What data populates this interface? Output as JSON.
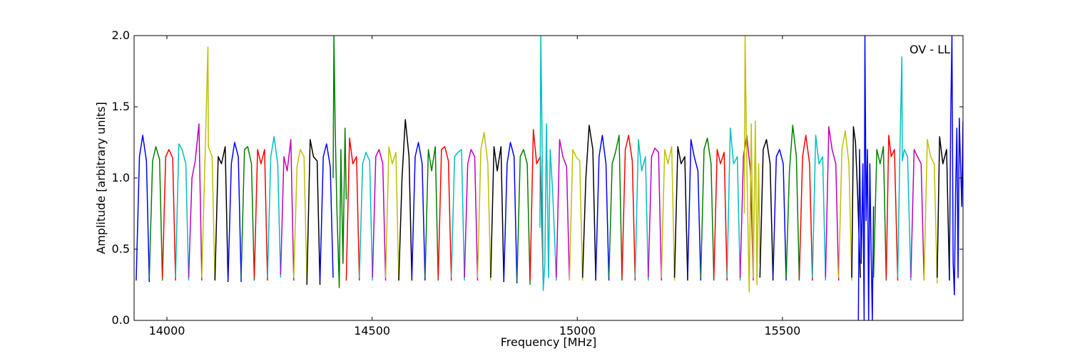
{
  "chart_data": {
    "type": "line",
    "xlabel": "Frequency [MHz]",
    "ylabel": "Amplitude [arbitrary units]",
    "annotation": "OV - LL",
    "xlim": [
      13920,
      15940
    ],
    "ylim": [
      0.0,
      2.0
    ],
    "x_ticks": [
      14000,
      14500,
      15000,
      15500
    ],
    "y_ticks": [
      0.0,
      0.5,
      1.0,
      1.5,
      2.0
    ],
    "y_tick_labels": [
      "0.0",
      "0.5",
      "1.0",
      "1.5",
      "2.0"
    ],
    "grid": false,
    "legend": "none",
    "colors": [
      "#0000ff",
      "#008000",
      "#ff0000",
      "#00bfbf",
      "#bf00bf",
      "#bfbf00",
      "#000000"
    ],
    "band_width_mhz": 32,
    "band_start_mhz": 13925,
    "series": [
      {
        "color": "#0000ff",
        "x": [
          13925,
          13933,
          13941,
          13950,
          13957
        ],
        "y": [
          0.28,
          1.15,
          1.3,
          1.12,
          0.27
        ]
      },
      {
        "color": "#008000",
        "x": [
          13957,
          13965,
          13973,
          13982,
          13989
        ],
        "y": [
          0.3,
          1.12,
          1.22,
          1.13,
          0.28
        ]
      },
      {
        "color": "#ff0000",
        "x": [
          13989,
          13997,
          14005,
          14014,
          14021
        ],
        "y": [
          0.3,
          1.15,
          1.2,
          1.14,
          0.28
        ]
      },
      {
        "color": "#00bfbf",
        "x": [
          14021,
          14029,
          14037,
          14046,
          14053
        ],
        "y": [
          0.3,
          1.24,
          1.2,
          1.1,
          0.28
        ]
      },
      {
        "color": "#bf00bf",
        "x": [
          14053,
          14061,
          14069,
          14078,
          14085
        ],
        "y": [
          0.3,
          1.0,
          1.12,
          1.38,
          0.28
        ]
      },
      {
        "color": "#bfbf00",
        "x": [
          14085,
          14093,
          14100,
          14101,
          14110,
          14117
        ],
        "y": [
          0.3,
          1.15,
          1.92,
          1.22,
          1.15,
          0.28
        ]
      },
      {
        "color": "#000000",
        "x": [
          14117,
          14125,
          14133,
          14142,
          14149
        ],
        "y": [
          0.28,
          1.15,
          1.1,
          1.22,
          0.27
        ]
      },
      {
        "color": "#0000ff",
        "x": [
          14149,
          14157,
          14165,
          14174,
          14181
        ],
        "y": [
          0.28,
          1.1,
          1.25,
          1.15,
          0.27
        ]
      },
      {
        "color": "#008000",
        "x": [
          14181,
          14189,
          14197,
          14206,
          14213
        ],
        "y": [
          0.3,
          1.2,
          1.22,
          1.1,
          0.28
        ]
      },
      {
        "color": "#ff0000",
        "x": [
          14213,
          14221,
          14229,
          14238,
          14245
        ],
        "y": [
          0.3,
          1.2,
          1.1,
          1.2,
          0.28
        ]
      },
      {
        "color": "#00bfbf",
        "x": [
          14245,
          14253,
          14261,
          14270,
          14277
        ],
        "y": [
          0.3,
          1.15,
          1.29,
          1.1,
          0.3
        ]
      },
      {
        "color": "#bf00bf",
        "x": [
          14277,
          14285,
          14293,
          14302,
          14309
        ],
        "y": [
          0.32,
          1.15,
          1.05,
          1.27,
          0.28
        ]
      },
      {
        "color": "#bfbf00",
        "x": [
          14309,
          14317,
          14325,
          14334,
          14341
        ],
        "y": [
          0.3,
          1.08,
          1.2,
          1.15,
          0.28
        ]
      },
      {
        "color": "#000000",
        "x": [
          14341,
          14349,
          14357,
          14366,
          14373
        ],
        "y": [
          0.25,
          1.27,
          1.15,
          1.12,
          0.25
        ]
      },
      {
        "color": "#0000ff",
        "x": [
          14373,
          14381,
          14389,
          14398,
          14405
        ],
        "y": [
          0.28,
          1.15,
          1.24,
          1.08,
          0.3
        ]
      },
      {
        "color": "#008000",
        "x": [
          14405,
          14407,
          14410,
          14414,
          14420,
          14424,
          14429,
          14434,
          14437
        ],
        "y": [
          1.0,
          2.0,
          1.35,
          0.8,
          0.23,
          1.2,
          0.4,
          1.35,
          0.85
        ]
      },
      {
        "color": "#ff0000",
        "x": [
          14437,
          14445,
          14453,
          14462,
          14469
        ],
        "y": [
          0.28,
          1.28,
          1.1,
          1.15,
          0.28
        ]
      },
      {
        "color": "#00bfbf",
        "x": [
          14469,
          14477,
          14485,
          14494,
          14501
        ],
        "y": [
          0.3,
          1.1,
          1.18,
          1.12,
          0.28
        ]
      },
      {
        "color": "#bf00bf",
        "x": [
          14501,
          14509,
          14517,
          14526,
          14533
        ],
        "y": [
          0.3,
          1.15,
          1.2,
          1.1,
          0.28
        ]
      },
      {
        "color": "#bfbf00",
        "x": [
          14533,
          14541,
          14549,
          14558,
          14565
        ],
        "y": [
          0.3,
          1.22,
          1.1,
          1.18,
          0.28
        ]
      },
      {
        "color": "#000000",
        "x": [
          14565,
          14573,
          14581,
          14590,
          14597
        ],
        "y": [
          0.28,
          1.0,
          1.41,
          1.15,
          0.28
        ]
      },
      {
        "color": "#0000ff",
        "x": [
          14597,
          14605,
          14613,
          14622,
          14629
        ],
        "y": [
          0.3,
          1.15,
          1.25,
          1.1,
          0.28
        ]
      },
      {
        "color": "#008000",
        "x": [
          14629,
          14637,
          14645,
          14654,
          14661
        ],
        "y": [
          0.3,
          1.2,
          1.05,
          1.22,
          0.28
        ]
      },
      {
        "color": "#ff0000",
        "x": [
          14661,
          14669,
          14677,
          14686,
          14693
        ],
        "y": [
          0.3,
          1.2,
          1.22,
          1.12,
          0.28
        ]
      },
      {
        "color": "#00bfbf",
        "x": [
          14693,
          14701,
          14709,
          14718,
          14725
        ],
        "y": [
          0.3,
          1.15,
          1.18,
          1.2,
          0.28
        ]
      },
      {
        "color": "#bf00bf",
        "x": [
          14725,
          14733,
          14741,
          14750,
          14757
        ],
        "y": [
          0.3,
          1.1,
          1.2,
          1.15,
          0.28
        ]
      },
      {
        "color": "#bfbf00",
        "x": [
          14757,
          14765,
          14773,
          14782,
          14789
        ],
        "y": [
          0.3,
          1.2,
          1.32,
          1.1,
          0.28
        ]
      },
      {
        "color": "#000000",
        "x": [
          14789,
          14797,
          14805,
          14814,
          14821
        ],
        "y": [
          0.3,
          1.22,
          1.05,
          1.22,
          0.27
        ]
      },
      {
        "color": "#0000ff",
        "x": [
          14821,
          14829,
          14837,
          14846,
          14853
        ],
        "y": [
          0.28,
          1.1,
          1.25,
          1.15,
          0.26
        ]
      },
      {
        "color": "#008000",
        "x": [
          14853,
          14861,
          14869,
          14878,
          14885
        ],
        "y": [
          0.27,
          1.15,
          1.2,
          1.1,
          0.25
        ]
      },
      {
        "color": "#ff0000",
        "x": [
          14885,
          14893,
          14901,
          14910,
          14917
        ],
        "y": [
          0.28,
          1.34,
          1.1,
          1.15,
          0.28
        ]
      },
      {
        "color": "#00bfbf",
        "x": [
          14909,
          14911,
          14914,
          14917,
          14921,
          14925,
          14930,
          14934,
          14940,
          14949
        ],
        "y": [
          0.65,
          2.0,
          1.35,
          0.21,
          0.4,
          1.38,
          0.3,
          1.2,
          0.9,
          0.28
        ]
      },
      {
        "color": "#bf00bf",
        "x": [
          14949,
          14957,
          14965,
          14974,
          14981
        ],
        "y": [
          0.3,
          1.27,
          1.15,
          1.08,
          0.28
        ]
      },
      {
        "color": "#bfbf00",
        "x": [
          14981,
          14989,
          14997,
          15006,
          15013
        ],
        "y": [
          0.28,
          1.2,
          1.15,
          1.12,
          0.28
        ]
      },
      {
        "color": "#000000",
        "x": [
          15013,
          15021,
          15029,
          15038,
          15045
        ],
        "y": [
          0.3,
          1.0,
          1.37,
          1.2,
          0.28
        ]
      },
      {
        "color": "#0000ff",
        "x": [
          15045,
          15053,
          15061,
          15070,
          15077
        ],
        "y": [
          0.3,
          1.15,
          1.3,
          1.1,
          0.28
        ]
      },
      {
        "color": "#008000",
        "x": [
          15077,
          15085,
          15093,
          15102,
          15109
        ],
        "y": [
          0.3,
          1.1,
          1.18,
          1.3,
          0.28
        ]
      },
      {
        "color": "#ff0000",
        "x": [
          15109,
          15117,
          15125,
          15134,
          15141
        ],
        "y": [
          0.3,
          1.2,
          1.3,
          1.12,
          0.28
        ]
      },
      {
        "color": "#00bfbf",
        "x": [
          15141,
          15149,
          15157,
          15166,
          15173
        ],
        "y": [
          0.3,
          1.27,
          1.05,
          1.15,
          0.28
        ]
      },
      {
        "color": "#bf00bf",
        "x": [
          15173,
          15181,
          15189,
          15198,
          15205
        ],
        "y": [
          0.3,
          1.15,
          1.21,
          1.18,
          0.28
        ]
      },
      {
        "color": "#bfbf00",
        "x": [
          15205,
          15213,
          15221,
          15230,
          15237
        ],
        "y": [
          0.3,
          1.2,
          1.1,
          1.22,
          0.28
        ]
      },
      {
        "color": "#000000",
        "x": [
          15237,
          15245,
          15253,
          15262,
          15269
        ],
        "y": [
          0.3,
          1.22,
          1.1,
          1.15,
          0.28
        ]
      },
      {
        "color": "#0000ff",
        "x": [
          15269,
          15277,
          15285,
          15294,
          15301
        ],
        "y": [
          0.3,
          1.27,
          1.15,
          1.05,
          0.28
        ]
      },
      {
        "color": "#008000",
        "x": [
          15301,
          15309,
          15317,
          15326,
          15333
        ],
        "y": [
          0.3,
          1.2,
          1.28,
          1.1,
          0.28
        ]
      },
      {
        "color": "#ff0000",
        "x": [
          15333,
          15341,
          15349,
          15358,
          15365
        ],
        "y": [
          0.3,
          1.2,
          1.1,
          1.18,
          0.28
        ]
      },
      {
        "color": "#00bfbf",
        "x": [
          15365,
          15373,
          15381,
          15390,
          15397
        ],
        "y": [
          0.3,
          1.35,
          1.1,
          1.15,
          0.28
        ]
      },
      {
        "color": "#bf00bf",
        "x": [
          15397,
          15405,
          15413,
          15422,
          15429
        ],
        "y": [
          0.3,
          1.15,
          1.3,
          1.05,
          0.28
        ]
      },
      {
        "color": "#bfbf00",
        "x": [
          15407,
          15409,
          15412,
          15415,
          15419,
          15424,
          15429,
          15434,
          15438,
          15442,
          15445
        ],
        "y": [
          0.75,
          2.0,
          1.3,
          0.8,
          0.2,
          1.38,
          0.3,
          1.4,
          0.25,
          1.1,
          0.4
        ]
      },
      {
        "color": "#000000",
        "x": [
          15445,
          15453,
          15461,
          15470,
          15477
        ],
        "y": [
          0.3,
          1.2,
          1.27,
          1.1,
          0.28
        ]
      },
      {
        "color": "#0000ff",
        "x": [
          15477,
          15485,
          15493,
          15502,
          15509
        ],
        "y": [
          0.3,
          1.15,
          1.2,
          1.1,
          0.28
        ]
      },
      {
        "color": "#008000",
        "x": [
          15509,
          15517,
          15525,
          15534,
          15541
        ],
        "y": [
          0.3,
          1.05,
          1.37,
          1.15,
          0.28
        ]
      },
      {
        "color": "#ff0000",
        "x": [
          15541,
          15549,
          15557,
          15566,
          15573
        ],
        "y": [
          0.3,
          1.15,
          1.3,
          1.1,
          0.28
        ]
      },
      {
        "color": "#00bfbf",
        "x": [
          15573,
          15581,
          15589,
          15598,
          15605
        ],
        "y": [
          0.3,
          1.3,
          1.1,
          1.15,
          0.28
        ]
      },
      {
        "color": "#bf00bf",
        "x": [
          15605,
          15613,
          15621,
          15630,
          15637
        ],
        "y": [
          0.3,
          1.36,
          1.2,
          1.1,
          0.28
        ]
      },
      {
        "color": "#bfbf00",
        "x": [
          15637,
          15645,
          15653,
          15662,
          15669
        ],
        "y": [
          0.3,
          1.2,
          1.33,
          1.1,
          0.28
        ]
      },
      {
        "color": "#000000",
        "x": [
          15669,
          15673,
          15678,
          15683,
          15690
        ],
        "y": [
          0.3,
          1.36,
          1.25,
          0.9,
          0.3
        ]
      },
      {
        "color": "#0000ff",
        "x": [
          15685,
          15688,
          15692,
          15696,
          15699,
          15701,
          15704,
          15707,
          15710,
          15713,
          15716,
          15719,
          15722
        ],
        "y": [
          0.0,
          1.2,
          0.4,
          1.1,
          0.0,
          2.0,
          0.7,
          1.2,
          0.0,
          1.1,
          0.5,
          0.0,
          0.8
        ]
      },
      {
        "color": "#008000",
        "x": [
          15722,
          15730,
          15738,
          15746,
          15753
        ],
        "y": [
          0.3,
          1.2,
          1.1,
          1.22,
          0.28
        ]
      },
      {
        "color": "#ff0000",
        "x": [
          15753,
          15759,
          15765,
          15773,
          15781
        ],
        "y": [
          0.3,
          1.3,
          1.15,
          1.2,
          0.28
        ]
      },
      {
        "color": "#00bfbf",
        "x": [
          15781,
          15786,
          15791,
          15792,
          15797,
          15805,
          15813
        ],
        "y": [
          0.3,
          1.15,
          1.85,
          1.12,
          1.2,
          1.15,
          0.28
        ]
      },
      {
        "color": "#bf00bf",
        "x": [
          15813,
          15821,
          15829,
          15838,
          15845
        ],
        "y": [
          0.3,
          1.2,
          1.15,
          1.1,
          0.28
        ]
      },
      {
        "color": "#bfbf00",
        "x": [
          15845,
          15853,
          15861,
          15870,
          15877
        ],
        "y": [
          0.28,
          1.27,
          1.15,
          1.1,
          0.26
        ]
      },
      {
        "color": "#000000",
        "x": [
          15877,
          15883,
          15891,
          15900,
          15907
        ],
        "y": [
          0.3,
          1.29,
          1.1,
          1.2,
          0.28
        ]
      },
      {
        "color": "#0000ff",
        "x": [
          15907,
          15910,
          15913,
          15916,
          15919,
          15922,
          15925,
          15928,
          15931,
          15934,
          15937,
          15940
        ],
        "y": [
          0.3,
          1.4,
          2.0,
          0.4,
          0.18,
          0.9,
          1.35,
          0.3,
          1.42,
          1.1,
          0.8,
          1.4
        ]
      }
    ]
  }
}
